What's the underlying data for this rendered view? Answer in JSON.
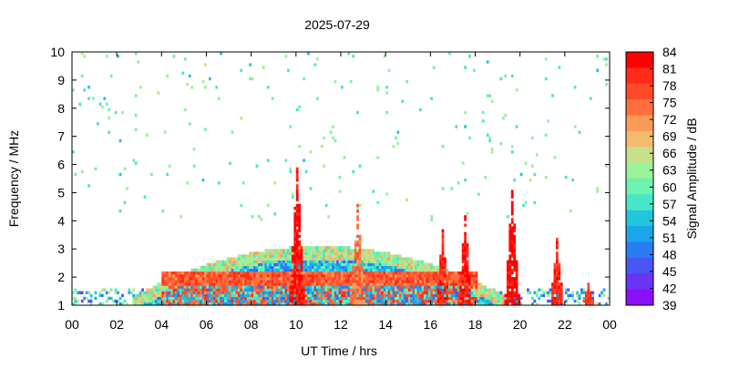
{
  "chart_data": {
    "type": "heatmap",
    "title": "2025-07-29",
    "xlabel": "UT Time / hrs",
    "ylabel": "Frequency / MHz",
    "xlim": [
      0,
      24
    ],
    "ylim": [
      1,
      10
    ],
    "x_ticks": [
      "00",
      "02",
      "04",
      "06",
      "08",
      "10",
      "12",
      "14",
      "16",
      "18",
      "20",
      "22",
      "00"
    ],
    "y_ticks": [
      "1",
      "2",
      "3",
      "4",
      "5",
      "6",
      "7",
      "8",
      "9",
      "10"
    ],
    "colorbar": {
      "label": "Signal Amplitude / dB",
      "range": [
        39,
        84
      ],
      "ticks": [
        "84",
        "81",
        "78",
        "75",
        "72",
        "69",
        "66",
        "63",
        "60",
        "57",
        "54",
        "51",
        "48",
        "45",
        "42",
        "39"
      ],
      "colors": [
        "#ff0000",
        "#ff2a17",
        "#ff4a28",
        "#ff6e3c",
        "#fc9a58",
        "#f2bc6c",
        "#c8e08a",
        "#9af29a",
        "#6ef2b0",
        "#48e6c8",
        "#22c6da",
        "#1aa6ea",
        "#2a7cf2",
        "#4a56f4",
        "#6a34f6",
        "#8a10fa"
      ]
    },
    "grid": false,
    "legend": "right colorbar",
    "features": [
      {
        "start": 0.0,
        "end": 24.0,
        "base": 1.0,
        "top_peak": 3.1,
        "peak_hour": 11.0,
        "level": 54
      },
      {
        "start": 4.0,
        "end": 18.0,
        "band_low": 1.0,
        "band_high": 2.2,
        "level": 76
      },
      {
        "hour": 10.0,
        "top": 6.0,
        "level": 82
      },
      {
        "hour": 12.7,
        "top": 4.6,
        "level": 74
      },
      {
        "hour": 16.5,
        "top": 3.7,
        "level": 80
      },
      {
        "hour": 17.5,
        "top": 4.2,
        "level": 82
      },
      {
        "hour": 19.6,
        "top": 5.1,
        "level": 83
      },
      {
        "hour": 21.6,
        "top": 3.4,
        "level": 80
      },
      {
        "hour": 23.0,
        "top": 1.8,
        "level": 78
      }
    ]
  }
}
